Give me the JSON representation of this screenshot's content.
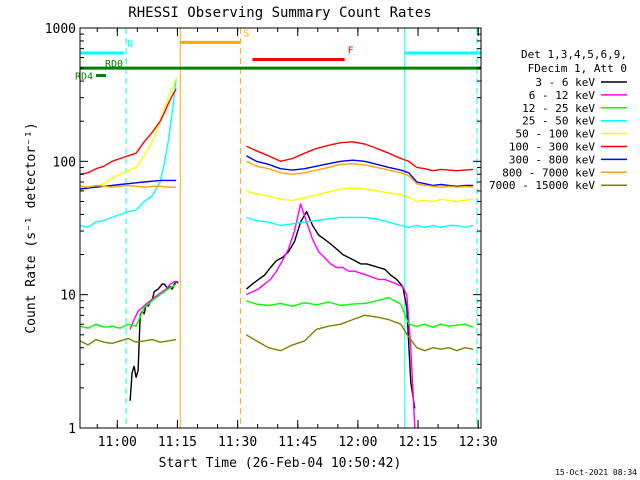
{
  "chart_data": {
    "type": "line",
    "title": "RHESSI Observing Summary Count Rates",
    "xlabel": "Start Time (26-Feb-04 10:50:42)",
    "ylabel": "Count Rate (s⁻¹ detector⁻¹)",
    "x_unit": "minutes after 10:50:42",
    "xlim": [
      0,
      100
    ],
    "ylim": [
      1,
      1000
    ],
    "yscale": "log",
    "x_ticks": [
      {
        "value": 9.3,
        "label": "11:00"
      },
      {
        "value": 24.3,
        "label": "11:15"
      },
      {
        "value": 39.3,
        "label": "11:30"
      },
      {
        "value": 54.3,
        "label": "11:45"
      },
      {
        "value": 69.3,
        "label": "12:00"
      },
      {
        "value": 84.3,
        "label": "12:15"
      },
      {
        "value": 99.3,
        "label": "12:30"
      }
    ],
    "y_ticks": [
      {
        "value": 1,
        "label": "1"
      },
      {
        "value": 10,
        "label": "10"
      },
      {
        "value": 100,
        "label": "100"
      },
      {
        "value": 1000,
        "label": "1000"
      }
    ],
    "legend_header": [
      "Det 1,3,4,5,6,9,",
      "FDecim 1, Att 0"
    ],
    "legend_position": "right",
    "series": [
      {
        "name": "3 - 6 keV",
        "color": "#000000",
        "x": [
          12.5,
          13,
          13.5,
          14,
          14.5,
          15,
          15.5,
          16,
          16.5,
          17,
          17.5,
          18,
          18.5,
          19,
          19.5,
          20,
          20.5,
          21,
          21.5,
          22,
          22.5,
          23,
          23.5,
          24,
          24.5,
          41.5,
          43,
          44.5,
          46,
          47.5,
          49,
          50.5,
          52,
          53.5,
          55,
          56.5,
          58,
          59.5,
          61,
          62.5,
          64,
          65.5,
          67,
          68.5,
          70,
          71.5,
          73,
          74.5,
          76,
          77.5,
          79,
          80.5,
          81.5,
          82.5,
          83.5
        ],
        "y": [
          1.6,
          2.6,
          2.9,
          2.4,
          2.7,
          7,
          7.5,
          7.2,
          8.5,
          8.2,
          8.8,
          9.1,
          10.5,
          10.8,
          11,
          11.5,
          12,
          12,
          11.5,
          11,
          11.5,
          11,
          12,
          12.5,
          12.2,
          11,
          12,
          13,
          14,
          16,
          18,
          19,
          21,
          25,
          35,
          42,
          33,
          28,
          26,
          24,
          22,
          20,
          19,
          18,
          17,
          17,
          16.5,
          16,
          15.5,
          14,
          13,
          11.5,
          8,
          2.2,
          1.4
        ]
      },
      {
        "name": "6 - 12 keV",
        "color": "#ff00ff",
        "x": [
          12.5,
          13.5,
          14.5,
          15.5,
          16.5,
          17.5,
          18.5,
          19.5,
          20.5,
          21.5,
          22.5,
          23.5,
          24.5,
          41.5,
          43,
          44.5,
          46,
          47.5,
          49,
          50.5,
          52,
          53.5,
          55,
          56.5,
          58,
          59.5,
          61,
          62.5,
          64,
          65.5,
          67,
          68.5,
          70,
          71.5,
          73,
          74.5,
          76,
          77.5,
          79,
          80.5,
          81.5,
          82.5,
          83.5
        ],
        "y": [
          5.5,
          6.5,
          7.5,
          8,
          8.5,
          9,
          9.5,
          10,
          10.5,
          11,
          12,
          12.5,
          12.5,
          10,
          10.5,
          11,
          12,
          13,
          15,
          18,
          22,
          30,
          48,
          35,
          26,
          21,
          19,
          17,
          16,
          16,
          15,
          15,
          14.5,
          14,
          13.5,
          13,
          13,
          12.5,
          12,
          11.5,
          10,
          4,
          1
        ]
      },
      {
        "name": "12 - 25 keV",
        "color": "#00ff00",
        "x": [
          0,
          2,
          4,
          6,
          8,
          10,
          12,
          14,
          16,
          18,
          20,
          22,
          24,
          41.5,
          44,
          47,
          50,
          53,
          56,
          59,
          62,
          65,
          68,
          71,
          74,
          77,
          80,
          82,
          84,
          86,
          88,
          90,
          92,
          94,
          96,
          98
        ],
        "y": [
          5.8,
          5.6,
          6,
          5.7,
          5.8,
          5.6,
          6,
          5.8,
          8,
          9,
          10,
          11,
          12,
          9,
          8.5,
          8.3,
          8.6,
          8.2,
          8.7,
          8.4,
          8.8,
          8.3,
          8.5,
          8.6,
          9,
          9.5,
          8.5,
          6,
          5.8,
          6,
          5.7,
          6,
          5.8,
          5.9,
          6,
          5.7
        ]
      },
      {
        "name": "25 - 50 keV",
        "color": "#00ffff",
        "x": [
          0,
          2,
          4,
          6,
          8,
          10,
          12,
          14,
          16,
          18,
          20,
          21,
          22,
          23,
          24,
          41.5,
          44,
          47,
          50,
          53,
          56,
          59,
          62,
          65,
          68,
          71,
          74,
          77,
          80,
          82,
          84,
          86,
          88,
          90,
          92,
          94,
          96,
          98
        ],
        "y": [
          33,
          32,
          35,
          36,
          38,
          40,
          42,
          43,
          50,
          55,
          70,
          95,
          140,
          230,
          420,
          38,
          36,
          35,
          33,
          34,
          35,
          36,
          37,
          38,
          38,
          38,
          37,
          35,
          33,
          32,
          33,
          32,
          33,
          32,
          33,
          33,
          32,
          33
        ]
      },
      {
        "name": "50 - 100 keV",
        "color": "#ffff00",
        "x": [
          0,
          2,
          4,
          6,
          8,
          10,
          12,
          14,
          16,
          18,
          20,
          21,
          22,
          23,
          24,
          41.5,
          44,
          47,
          50,
          53,
          56,
          59,
          62,
          65,
          68,
          71,
          74,
          77,
          80,
          82,
          84,
          86,
          88,
          90,
          92,
          94,
          96,
          98
        ],
        "y": [
          60,
          62,
          65,
          68,
          75,
          80,
          85,
          90,
          110,
          140,
          200,
          250,
          300,
          350,
          420,
          60,
          57,
          55,
          52,
          51,
          53,
          56,
          59,
          62,
          63,
          62,
          60,
          58,
          56,
          54,
          50,
          51,
          50,
          52,
          51,
          50,
          51,
          52
        ]
      },
      {
        "name": "100 - 300 keV",
        "color": "#ff0000",
        "x": [
          0,
          2,
          4,
          6,
          8,
          10,
          12,
          14,
          16,
          18,
          20,
          21,
          22,
          23,
          24,
          41.5,
          44,
          47,
          50,
          53,
          56,
          59,
          62,
          65,
          68,
          71,
          74,
          77,
          80,
          82,
          84,
          86,
          88,
          90,
          92,
          94,
          96,
          98
        ],
        "y": [
          80,
          82,
          88,
          92,
          100,
          105,
          110,
          115,
          140,
          165,
          200,
          230,
          270,
          310,
          350,
          130,
          120,
          110,
          100,
          105,
          115,
          125,
          132,
          138,
          140,
          135,
          125,
          115,
          105,
          100,
          90,
          88,
          85,
          87,
          86,
          85,
          86,
          87
        ]
      },
      {
        "name": "300 - 800 keV",
        "color": "#0000ff",
        "x": [
          0,
          2,
          4,
          6,
          8,
          10,
          12,
          14,
          16,
          18,
          20,
          22,
          24,
          41.5,
          44,
          47,
          50,
          53,
          56,
          59,
          62,
          65,
          68,
          71,
          74,
          77,
          80,
          82,
          84,
          86,
          88,
          90,
          92,
          94,
          96,
          98
        ],
        "y": [
          62,
          63,
          64,
          65,
          66,
          67,
          68,
          69,
          70,
          71,
          72,
          72,
          72,
          110,
          100,
          95,
          88,
          86,
          88,
          92,
          96,
          100,
          102,
          100,
          95,
          90,
          86,
          82,
          70,
          68,
          66,
          67,
          66,
          65,
          66,
          66
        ]
      },
      {
        "name": "800 - 7000 keV",
        "color": "#ffa500",
        "x": [
          0,
          2,
          4,
          6,
          8,
          10,
          12,
          14,
          16,
          18,
          20,
          22,
          24,
          41.5,
          44,
          47,
          50,
          53,
          56,
          59,
          62,
          65,
          68,
          71,
          74,
          77,
          80,
          82,
          84,
          86,
          88,
          90,
          92,
          94,
          96,
          98
        ],
        "y": [
          65,
          64,
          66,
          65,
          64,
          65,
          66,
          65,
          64,
          65,
          65,
          64,
          64,
          100,
          92,
          88,
          82,
          80,
          82,
          86,
          90,
          95,
          96,
          94,
          90,
          86,
          82,
          78,
          68,
          66,
          65,
          64,
          65,
          64,
          65,
          64
        ]
      },
      {
        "name": "7000 - 15000 keV",
        "color": "#808000",
        "x": [
          0,
          2,
          4,
          6,
          8,
          10,
          12,
          14,
          16,
          18,
          20,
          22,
          24,
          41.5,
          44,
          47,
          50,
          53,
          56,
          59,
          62,
          65,
          68,
          71,
          74,
          77,
          80,
          82,
          84,
          86,
          88,
          90,
          92,
          94,
          96,
          98
        ],
        "y": [
          4.5,
          4.2,
          4.6,
          4.4,
          4.3,
          4.5,
          4.7,
          4.4,
          4.5,
          4.6,
          4.4,
          4.5,
          4.6,
          5,
          4.5,
          4,
          3.8,
          4.2,
          4.5,
          5.5,
          5.8,
          6,
          6.5,
          7,
          6.8,
          6.5,
          6,
          4.8,
          4,
          3.8,
          4,
          3.9,
          4,
          3.8,
          4,
          3.9
        ]
      }
    ],
    "status_flags": [
      {
        "label": "N",
        "color": "#00ffff",
        "x_start": 0,
        "x_end": 11,
        "y": 650
      },
      {
        "label": "S",
        "color": "#ffa500",
        "x_start": 25,
        "x_end": 40,
        "y": 780
      },
      {
        "label": "F",
        "color": "#ff0000",
        "x_start": 43,
        "x_end": 66,
        "y": 580
      },
      {
        "label": "",
        "color": "#00ffff",
        "x_start": 81,
        "x_end": 100,
        "y": 650
      },
      {
        "label": "RD0",
        "color": "#008000",
        "x_start": 0,
        "x_end": 100,
        "y": 500
      },
      {
        "label": "RD4",
        "color": "#008000",
        "x_start": 4,
        "x_end": 6.5,
        "y": 440
      }
    ],
    "vertical_markers": [
      {
        "x": 0,
        "color": "#00ffff",
        "style": "solid"
      },
      {
        "x": 11.5,
        "color": "#00ffff",
        "style": "dashed"
      },
      {
        "x": 25,
        "color": "#ffa500",
        "style": "solid"
      },
      {
        "x": 40,
        "color": "#ffa500",
        "style": "dashed"
      },
      {
        "x": 81,
        "color": "#00ffff",
        "style": "solid"
      },
      {
        "x": 99,
        "color": "#00ffff",
        "style": "dashed"
      }
    ]
  },
  "footer_timestamp": "15-Oct-2021 08:34"
}
